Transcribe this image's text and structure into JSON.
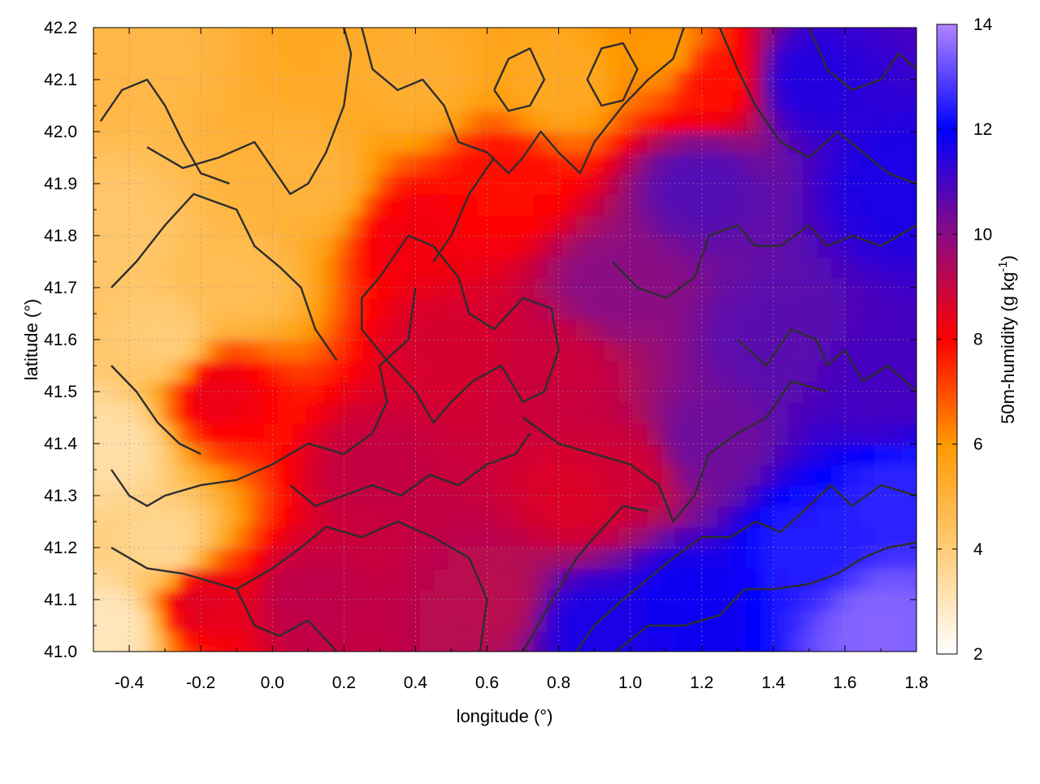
{
  "chart_data": {
    "type": "heatmap",
    "xlabel": "longitude (°)",
    "ylabel": "latitude (°)",
    "colorbar_label": "50m-humidity (g kg",
    "colorbar_label_sup": "-1",
    "colorbar_label_end": ")",
    "xlim": [
      -0.5,
      1.8
    ],
    "ylim": [
      41.0,
      42.2
    ],
    "zlim": [
      2,
      14
    ],
    "xticks": [
      {
        "value": -0.4,
        "label": "-0.4"
      },
      {
        "value": -0.2,
        "label": "-0.2"
      },
      {
        "value": 0.0,
        "label": "0.0"
      },
      {
        "value": 0.2,
        "label": "0.2"
      },
      {
        "value": 0.4,
        "label": "0.4"
      },
      {
        "value": 0.6,
        "label": "0.6"
      },
      {
        "value": 0.8,
        "label": "0.8"
      },
      {
        "value": 1.0,
        "label": "1.0"
      },
      {
        "value": 1.2,
        "label": "1.2"
      },
      {
        "value": 1.4,
        "label": "1.4"
      },
      {
        "value": 1.6,
        "label": "1.6"
      },
      {
        "value": 1.8,
        "label": "1.8"
      }
    ],
    "yticks": [
      {
        "value": 41.0,
        "label": "41.0"
      },
      {
        "value": 41.1,
        "label": "41.1"
      },
      {
        "value": 41.2,
        "label": "41.2"
      },
      {
        "value": 41.3,
        "label": "41.3"
      },
      {
        "value": 41.4,
        "label": "41.4"
      },
      {
        "value": 41.5,
        "label": "41.5"
      },
      {
        "value": 41.6,
        "label": "41.6"
      },
      {
        "value": 41.7,
        "label": "41.7"
      },
      {
        "value": 41.8,
        "label": "41.8"
      },
      {
        "value": 41.9,
        "label": "41.9"
      },
      {
        "value": 42.0,
        "label": "42.0"
      },
      {
        "value": 42.1,
        "label": "42.1"
      },
      {
        "value": 42.2,
        "label": "42.2"
      }
    ],
    "colorbar_ticks": [
      {
        "value": 2,
        "label": "2"
      },
      {
        "value": 4,
        "label": "4"
      },
      {
        "value": 6,
        "label": "6"
      },
      {
        "value": 8,
        "label": "8"
      },
      {
        "value": 10,
        "label": "10"
      },
      {
        "value": 12,
        "label": "12"
      },
      {
        "value": 14,
        "label": "14"
      }
    ],
    "colormap": [
      {
        "value": 2,
        "color": "#ffffff"
      },
      {
        "value": 4,
        "color": "#ffcc77"
      },
      {
        "value": 6,
        "color": "#ff9900"
      },
      {
        "value": 8,
        "color": "#ff0000"
      },
      {
        "value": 10,
        "color": "#8a0b84"
      },
      {
        "value": 12,
        "color": "#0000ff"
      },
      {
        "value": 14,
        "color": "#b085ff"
      }
    ],
    "field_samples": [
      {
        "lon": -0.45,
        "lat": 41.05,
        "value": 3.0
      },
      {
        "lon": -0.45,
        "lat": 41.4,
        "value": 3.3
      },
      {
        "lon": -0.45,
        "lat": 41.8,
        "value": 4.2
      },
      {
        "lon": -0.45,
        "lat": 42.15,
        "value": 4.8
      },
      {
        "lon": -0.3,
        "lat": 41.2,
        "value": 3.6
      },
      {
        "lon": -0.3,
        "lat": 41.6,
        "value": 4.0
      },
      {
        "lon": -0.2,
        "lat": 41.1,
        "value": 8.5
      },
      {
        "lon": -0.15,
        "lat": 41.5,
        "value": 8.3
      },
      {
        "lon": -0.1,
        "lat": 41.7,
        "value": 4.6
      },
      {
        "lon": 0.1,
        "lat": 41.9,
        "value": 5.0
      },
      {
        "lon": 0.4,
        "lat": 42.1,
        "value": 5.2
      },
      {
        "lon": 0.8,
        "lat": 42.1,
        "value": 5.4
      },
      {
        "lon": 1.1,
        "lat": 42.15,
        "value": 6.0
      },
      {
        "lon": 1.22,
        "lat": 42.1,
        "value": 7.8
      },
      {
        "lon": 0.1,
        "lat": 41.1,
        "value": 9.1
      },
      {
        "lon": 0.3,
        "lat": 41.35,
        "value": 9.0
      },
      {
        "lon": 0.5,
        "lat": 41.6,
        "value": 8.7
      },
      {
        "lon": 0.4,
        "lat": 41.8,
        "value": 8.2
      },
      {
        "lon": 0.65,
        "lat": 41.9,
        "value": 7.9
      },
      {
        "lon": 0.8,
        "lat": 41.55,
        "value": 8.9
      },
      {
        "lon": 0.6,
        "lat": 41.1,
        "value": 9.2
      },
      {
        "lon": 0.85,
        "lat": 41.3,
        "value": 8.6
      },
      {
        "lon": 1.0,
        "lat": 41.35,
        "value": 8.8
      },
      {
        "lon": 0.95,
        "lat": 41.7,
        "value": 10.0
      },
      {
        "lon": 1.2,
        "lat": 41.9,
        "value": 10.8
      },
      {
        "lon": 1.5,
        "lat": 42.1,
        "value": 11.5
      },
      {
        "lon": 1.75,
        "lat": 41.9,
        "value": 11.6
      },
      {
        "lon": 1.4,
        "lat": 41.6,
        "value": 10.7
      },
      {
        "lon": 1.7,
        "lat": 41.5,
        "value": 11.0
      },
      {
        "lon": 1.2,
        "lat": 41.4,
        "value": 10.4
      },
      {
        "lon": 0.9,
        "lat": 41.05,
        "value": 11.6
      },
      {
        "lon": 1.15,
        "lat": 41.1,
        "value": 11.8
      },
      {
        "lon": 1.5,
        "lat": 41.2,
        "value": 12.4
      },
      {
        "lon": 1.7,
        "lat": 41.05,
        "value": 13.5
      },
      {
        "lon": 1.75,
        "lat": 41.3,
        "value": 12.5
      }
    ],
    "contour_lines": [
      [
        [
          -0.45,
          41.35
        ],
        [
          -0.4,
          41.3
        ],
        [
          -0.35,
          41.28
        ],
        [
          -0.3,
          41.3
        ],
        [
          -0.2,
          41.32
        ],
        [
          -0.1,
          41.33
        ],
        [
          0.0,
          41.36
        ],
        [
          0.1,
          41.4
        ],
        [
          0.2,
          41.38
        ],
        [
          0.28,
          41.42
        ],
        [
          0.32,
          41.48
        ],
        [
          0.3,
          41.55
        ],
        [
          0.38,
          41.6
        ],
        [
          0.4,
          41.7
        ]
      ],
      [
        [
          -0.45,
          41.2
        ],
        [
          -0.35,
          41.16
        ],
        [
          -0.25,
          41.15
        ],
        [
          -0.1,
          41.12
        ],
        [
          0.0,
          41.16
        ],
        [
          0.08,
          41.2
        ],
        [
          0.15,
          41.24
        ],
        [
          0.25,
          41.22
        ],
        [
          0.35,
          41.25
        ],
        [
          0.45,
          41.22
        ],
        [
          0.55,
          41.18
        ],
        [
          0.6,
          41.1
        ],
        [
          0.58,
          41.0
        ]
      ],
      [
        [
          -0.45,
          41.55
        ],
        [
          -0.38,
          41.5
        ],
        [
          -0.32,
          41.44
        ],
        [
          -0.26,
          41.4
        ],
        [
          -0.2,
          41.38
        ]
      ],
      [
        [
          -0.45,
          41.7
        ],
        [
          -0.38,
          41.75
        ],
        [
          -0.3,
          41.82
        ],
        [
          -0.22,
          41.88
        ],
        [
          -0.1,
          41.85
        ],
        [
          -0.05,
          41.78
        ],
        [
          0.02,
          41.74
        ],
        [
          0.08,
          41.7
        ],
        [
          0.12,
          41.62
        ],
        [
          0.18,
          41.56
        ]
      ],
      [
        [
          -0.35,
          41.97
        ],
        [
          -0.25,
          41.93
        ],
        [
          -0.15,
          41.95
        ],
        [
          -0.05,
          41.98
        ],
        [
          0.0,
          41.93
        ],
        [
          0.05,
          41.88
        ],
        [
          0.1,
          41.9
        ],
        [
          0.15,
          41.96
        ],
        [
          0.2,
          42.05
        ],
        [
          0.22,
          42.15
        ],
        [
          0.2,
          42.2
        ]
      ],
      [
        [
          -0.48,
          42.02
        ],
        [
          -0.42,
          42.08
        ],
        [
          -0.35,
          42.1
        ],
        [
          -0.3,
          42.05
        ],
        [
          -0.25,
          41.98
        ],
        [
          -0.2,
          41.92
        ],
        [
          -0.12,
          41.9
        ]
      ],
      [
        [
          0.25,
          41.68
        ],
        [
          0.3,
          41.72
        ],
        [
          0.38,
          41.8
        ],
        [
          0.45,
          41.78
        ],
        [
          0.52,
          41.72
        ],
        [
          0.55,
          41.65
        ],
        [
          0.62,
          41.62
        ],
        [
          0.7,
          41.68
        ],
        [
          0.78,
          41.66
        ],
        [
          0.8,
          41.58
        ],
        [
          0.76,
          41.5
        ],
        [
          0.7,
          41.48
        ],
        [
          0.64,
          41.55
        ],
        [
          0.56,
          41.52
        ],
        [
          0.5,
          41.48
        ],
        [
          0.45,
          41.44
        ],
        [
          0.4,
          41.5
        ],
        [
          0.32,
          41.56
        ],
        [
          0.25,
          41.62
        ],
        [
          0.25,
          41.68
        ]
      ],
      [
        [
          0.62,
          41.95
        ],
        [
          0.55,
          41.88
        ],
        [
          0.5,
          41.8
        ],
        [
          0.45,
          41.75
        ]
      ],
      [
        [
          0.25,
          42.2
        ],
        [
          0.28,
          42.12
        ],
        [
          0.35,
          42.08
        ],
        [
          0.42,
          42.1
        ],
        [
          0.48,
          42.05
        ],
        [
          0.52,
          41.98
        ],
        [
          0.6,
          41.96
        ],
        [
          0.66,
          41.92
        ],
        [
          0.7,
          41.95
        ],
        [
          0.75,
          42.0
        ],
        [
          0.8,
          41.96
        ],
        [
          0.86,
          41.92
        ],
        [
          0.9,
          41.98
        ],
        [
          0.98,
          42.05
        ],
        [
          1.05,
          42.1
        ],
        [
          1.12,
          42.14
        ],
        [
          1.15,
          42.2
        ]
      ],
      [
        [
          0.62,
          42.08
        ],
        [
          0.66,
          42.14
        ],
        [
          0.72,
          42.16
        ],
        [
          0.76,
          42.1
        ],
        [
          0.72,
          42.05
        ],
        [
          0.66,
          42.04
        ],
        [
          0.62,
          42.08
        ]
      ],
      [
        [
          0.88,
          42.1
        ],
        [
          0.92,
          42.16
        ],
        [
          0.98,
          42.17
        ],
        [
          1.02,
          42.12
        ],
        [
          0.98,
          42.06
        ],
        [
          0.92,
          42.05
        ],
        [
          0.88,
          42.1
        ]
      ],
      [
        [
          0.7,
          41.45
        ],
        [
          0.8,
          41.4
        ],
        [
          0.9,
          41.38
        ],
        [
          1.0,
          41.36
        ],
        [
          1.08,
          41.32
        ],
        [
          1.12,
          41.25
        ],
        [
          1.18,
          41.3
        ],
        [
          1.22,
          41.38
        ],
        [
          1.3,
          41.42
        ],
        [
          1.38,
          41.45
        ],
        [
          1.45,
          41.52
        ],
        [
          1.55,
          41.5
        ]
      ],
      [
        [
          0.7,
          41.0
        ],
        [
          0.75,
          41.06
        ],
        [
          0.8,
          41.12
        ],
        [
          0.85,
          41.18
        ],
        [
          0.9,
          41.22
        ],
        [
          0.98,
          41.28
        ],
        [
          1.05,
          41.27
        ]
      ],
      [
        [
          0.85,
          41.0
        ],
        [
          0.9,
          41.05
        ],
        [
          0.98,
          41.1
        ],
        [
          1.05,
          41.14
        ],
        [
          1.12,
          41.18
        ],
        [
          1.2,
          41.22
        ],
        [
          1.28,
          41.22
        ],
        [
          1.35,
          41.25
        ],
        [
          1.42,
          41.23
        ],
        [
          1.5,
          41.28
        ],
        [
          1.56,
          41.32
        ],
        [
          1.62,
          41.28
        ],
        [
          1.7,
          41.32
        ],
        [
          1.8,
          41.3
        ]
      ],
      [
        [
          0.96,
          41.0
        ],
        [
          1.05,
          41.05
        ],
        [
          1.15,
          41.05
        ],
        [
          1.25,
          41.07
        ],
        [
          1.32,
          41.12
        ],
        [
          1.4,
          41.12
        ],
        [
          1.5,
          41.13
        ],
        [
          1.58,
          41.15
        ],
        [
          1.65,
          41.18
        ],
        [
          1.72,
          41.2
        ],
        [
          1.8,
          41.21
        ]
      ],
      [
        [
          0.95,
          41.75
        ],
        [
          1.02,
          41.7
        ],
        [
          1.1,
          41.68
        ],
        [
          1.18,
          41.72
        ],
        [
          1.22,
          41.8
        ],
        [
          1.3,
          41.82
        ],
        [
          1.35,
          41.78
        ],
        [
          1.42,
          41.78
        ],
        [
          1.5,
          41.82
        ],
        [
          1.55,
          41.78
        ],
        [
          1.62,
          41.8
        ],
        [
          1.7,
          41.78
        ],
        [
          1.8,
          41.82
        ]
      ],
      [
        [
          1.25,
          42.2
        ],
        [
          1.3,
          42.12
        ],
        [
          1.35,
          42.05
        ],
        [
          1.42,
          41.98
        ],
        [
          1.5,
          41.95
        ],
        [
          1.58,
          42.0
        ],
        [
          1.65,
          41.96
        ],
        [
          1.72,
          41.92
        ],
        [
          1.8,
          41.9
        ]
      ],
      [
        [
          1.5,
          42.2
        ],
        [
          1.55,
          42.12
        ],
        [
          1.62,
          42.08
        ],
        [
          1.7,
          42.1
        ],
        [
          1.75,
          42.15
        ],
        [
          1.8,
          42.12
        ]
      ],
      [
        [
          1.3,
          41.6
        ],
        [
          1.38,
          41.55
        ],
        [
          1.45,
          41.62
        ],
        [
          1.52,
          41.6
        ],
        [
          1.55,
          41.55
        ],
        [
          1.6,
          41.58
        ],
        [
          1.65,
          41.52
        ],
        [
          1.72,
          41.55
        ],
        [
          1.8,
          41.5
        ]
      ],
      [
        [
          0.05,
          41.32
        ],
        [
          0.12,
          41.28
        ],
        [
          0.2,
          41.3
        ],
        [
          0.28,
          41.32
        ],
        [
          0.36,
          41.3
        ],
        [
          0.44,
          41.34
        ],
        [
          0.52,
          41.32
        ],
        [
          0.6,
          41.36
        ],
        [
          0.68,
          41.38
        ],
        [
          0.72,
          41.42
        ]
      ],
      [
        [
          -0.1,
          41.12
        ],
        [
          -0.05,
          41.05
        ],
        [
          0.02,
          41.03
        ],
        [
          0.1,
          41.06
        ],
        [
          0.18,
          41.0
        ]
      ]
    ]
  }
}
